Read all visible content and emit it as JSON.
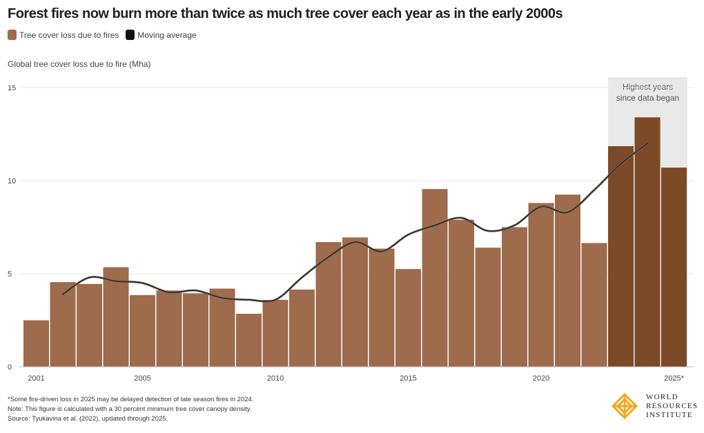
{
  "title": "Forest fires now burn more than twice as much tree cover each year as in the early 2000s",
  "legend": [
    {
      "label": "Tree cover loss due to fires",
      "color": "#9e6b4c"
    },
    {
      "label": "Moving average",
      "color": "#111111"
    }
  ],
  "highlight_label_line1": "Highest years",
  "highlight_label_line2": "since data began",
  "notes": [
    "*Some fire-driven loss in 2025 may be delayed detection of late season fires in 2024.",
    "Note: This figure is calculated with a 30 percent minimum tree cover canopy density.",
    "Source: Tyukavina et al. (2022), updated through 2025."
  ],
  "logo": {
    "line1": "WORLD",
    "line2": "RESOURCES",
    "line3": "INSTITUTE"
  },
  "chart_data": {
    "type": "bar",
    "ylabel": "Global tree cover loss due to fire (Mha)",
    "ylim": [
      0,
      16
    ],
    "yticks": [
      0,
      5,
      10,
      15
    ],
    "categories": [
      "2001",
      "2002",
      "2003",
      "2004",
      "2005",
      "2006",
      "2007",
      "2008",
      "2009",
      "2010",
      "2011",
      "2012",
      "2013",
      "2014",
      "2015",
      "2016",
      "2017",
      "2018",
      "2019",
      "2020",
      "2021",
      "2022",
      "2023",
      "2024",
      "2025*"
    ],
    "xtick_labels": [
      "2001",
      "2005",
      "2010",
      "2015",
      "2020",
      "2025*"
    ],
    "series": [
      {
        "name": "Tree cover loss due to fires",
        "values": [
          2.5,
          4.55,
          4.45,
          5.35,
          3.85,
          4.1,
          3.95,
          4.2,
          2.85,
          3.6,
          4.15,
          6.7,
          6.95,
          6.35,
          5.25,
          9.55,
          7.9,
          6.4,
          7.5,
          8.8,
          9.25,
          6.65,
          11.85,
          13.4,
          10.7
        ]
      },
      {
        "name": "Moving average",
        "x": [
          "2002",
          "2003",
          "2004",
          "2005",
          "2006",
          "2007",
          "2008",
          "2009",
          "2010",
          "2011",
          "2012",
          "2013",
          "2014",
          "2015",
          "2016",
          "2017",
          "2018",
          "2019",
          "2020",
          "2021",
          "2022",
          "2023",
          "2024"
        ],
        "values": [
          3.9,
          4.8,
          4.6,
          4.5,
          4.0,
          4.1,
          3.7,
          3.6,
          3.6,
          4.8,
          5.9,
          6.7,
          6.2,
          7.1,
          7.6,
          8.0,
          7.3,
          7.6,
          8.6,
          8.3,
          9.5,
          10.9,
          12.0
        ]
      }
    ],
    "highlight_categories": [
      "2023",
      "2024",
      "2025*"
    ],
    "colors": {
      "bar": "#9e6b4c",
      "bar_highlight": "#7d4a27",
      "line": "#3d2a20",
      "line_outline": "#777777",
      "highlight_bg": "#e8e8e8",
      "grid": "#e6e6e6"
    },
    "grid": true
  }
}
